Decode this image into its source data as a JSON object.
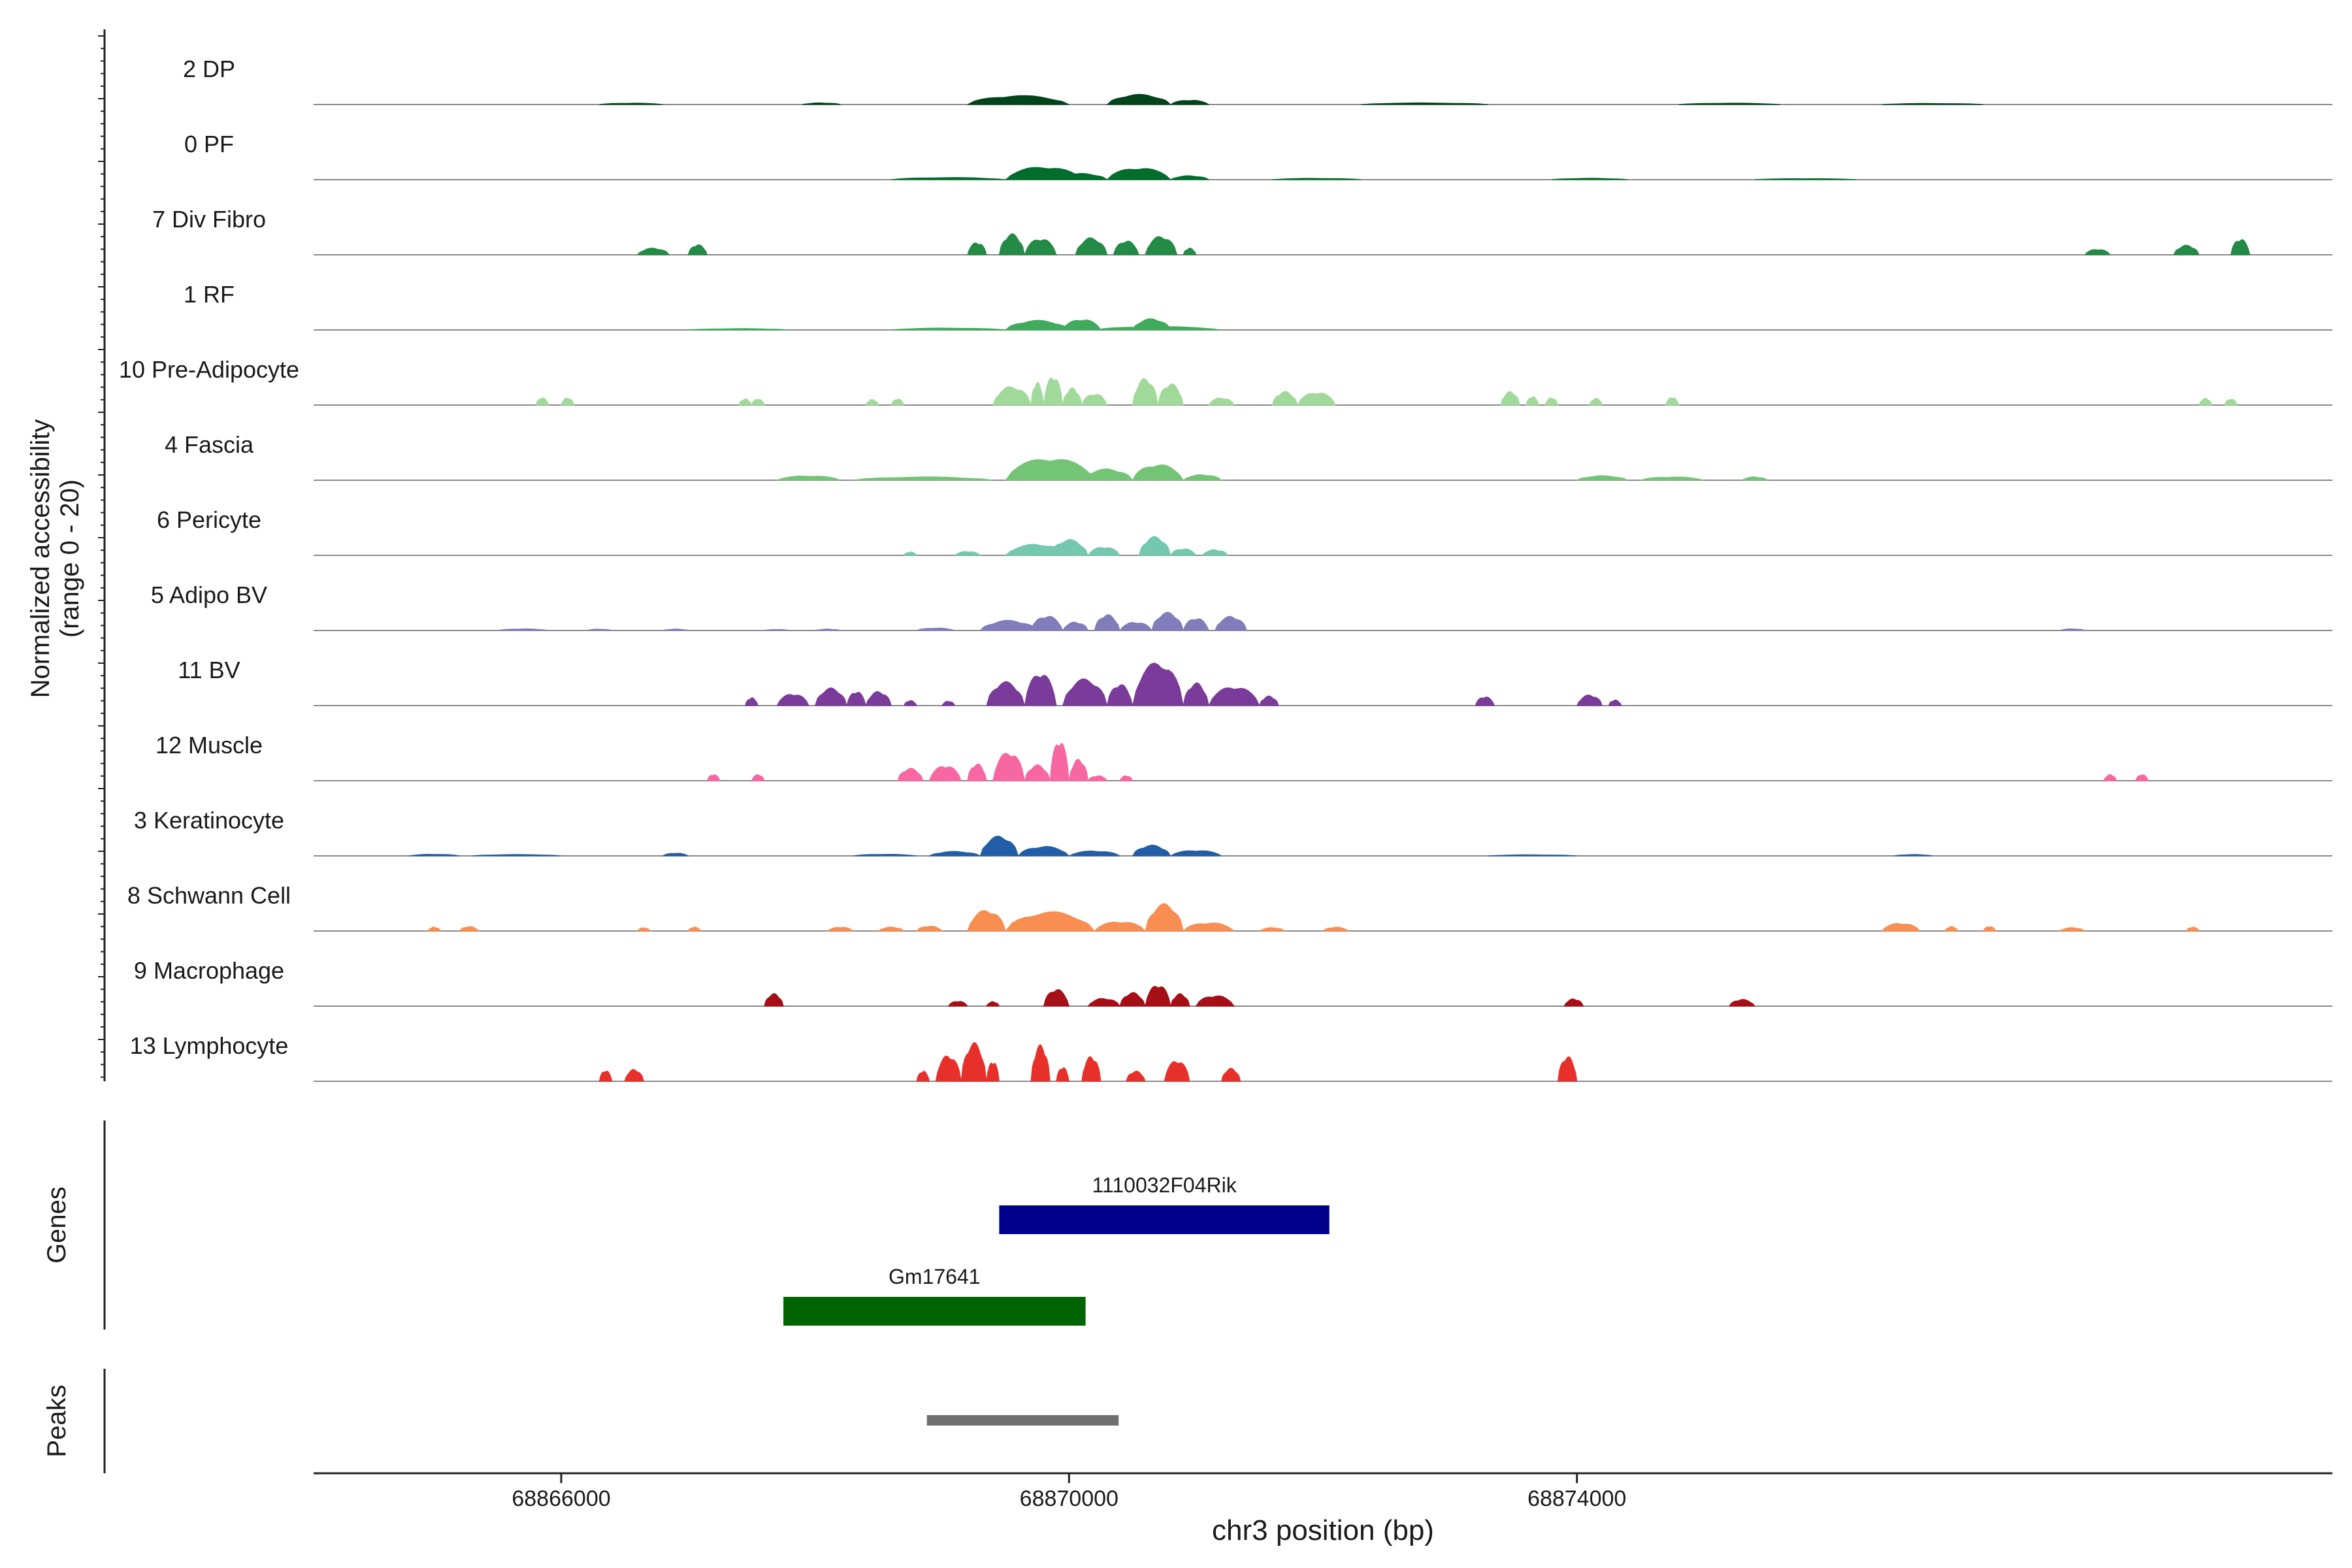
{
  "chart_data": {
    "type": "area",
    "title": "",
    "ylabel_line1": "Normalized accessibility",
    "ylabel_line2": "(range 0 - 20)",
    "xlabel": "chr3 position (bp)",
    "xlim": [
      68864050,
      68879950
    ],
    "ylim": [
      0,
      20
    ],
    "x_ticks": [
      68866000,
      68870000,
      68874000
    ],
    "x_tick_labels": [
      "68866000",
      "68870000",
      "68874000"
    ],
    "tracks": [
      {
        "name": "2 DP",
        "color": "#00441b",
        "peaks": [
          [
            68866300,
            68866800,
            0.5
          ],
          [
            68867900,
            68868200,
            0.6
          ],
          [
            68869200,
            68870000,
            3.2
          ],
          [
            68869600,
            68869800,
            2.6
          ],
          [
            68870300,
            68870800,
            3.6
          ],
          [
            68870800,
            68871100,
            1.6
          ],
          [
            68872300,
            68873300,
            0.6
          ],
          [
            68874800,
            68875600,
            0.5
          ],
          [
            68876400,
            68877200,
            0.4
          ]
        ]
      },
      {
        "name": "0 PF",
        "color": "#006d2c",
        "peaks": [
          [
            68869500,
            68870100,
            4.6
          ],
          [
            68869900,
            68870300,
            2.2
          ],
          [
            68870300,
            68870800,
            4.2
          ],
          [
            68870800,
            68871100,
            1.4
          ],
          [
            68868600,
            68869500,
            0.8
          ],
          [
            68871600,
            68872300,
            0.5
          ],
          [
            68873800,
            68874400,
            0.5
          ],
          [
            68875400,
            68876200,
            0.4
          ]
        ]
      },
      {
        "name": "7 Div Fibro",
        "color": "#238b45",
        "peaks": [
          [
            68866600,
            68866850,
            2.4
          ],
          [
            68867000,
            68867150,
            3.6
          ],
          [
            68869200,
            68869350,
            4.4
          ],
          [
            68869450,
            68869650,
            7.4
          ],
          [
            68869650,
            68869900,
            5.8
          ],
          [
            68870050,
            68870300,
            6.0
          ],
          [
            68870350,
            68870550,
            5.0
          ],
          [
            68870600,
            68870850,
            6.6
          ],
          [
            68870900,
            68871000,
            2.4
          ],
          [
            68878000,
            68878200,
            2.0
          ],
          [
            68878700,
            68878900,
            3.4
          ],
          [
            68879150,
            68879300,
            5.6
          ]
        ]
      },
      {
        "name": "1 RF",
        "color": "#41ab5d",
        "peaks": [
          [
            68869500,
            68870000,
            3.4
          ],
          [
            68869950,
            68870250,
            3.8
          ],
          [
            68870500,
            68870800,
            4.0
          ],
          [
            68870200,
            68871200,
            1.2
          ],
          [
            68868600,
            68869500,
            0.7
          ],
          [
            68867000,
            68867800,
            0.5
          ]
        ]
      },
      {
        "name": "10 Pre-Adipocyte",
        "color": "#a1d99b",
        "peaks": [
          [
            68865800,
            68865900,
            2.6
          ],
          [
            68866000,
            68866100,
            2.6
          ],
          [
            68867400,
            68867500,
            2.2
          ],
          [
            68867500,
            68867600,
            2.2
          ],
          [
            68868400,
            68868500,
            2.0
          ],
          [
            68868600,
            68868700,
            2.2
          ],
          [
            68869400,
            68869700,
            6.6
          ],
          [
            68869700,
            68869800,
            8.0
          ],
          [
            68869800,
            68869950,
            10.2
          ],
          [
            68869950,
            68870100,
            6.0
          ],
          [
            68870100,
            68870300,
            4.0
          ],
          [
            68870500,
            68870700,
            9.4
          ],
          [
            68870700,
            68870900,
            7.6
          ],
          [
            68871100,
            68871300,
            2.6
          ],
          [
            68871600,
            68871800,
            4.8
          ],
          [
            68871800,
            68872100,
            4.6
          ],
          [
            68873400,
            68873550,
            4.8
          ],
          [
            68873600,
            68873700,
            3.0
          ],
          [
            68873750,
            68873850,
            2.6
          ],
          [
            68874100,
            68874200,
            2.4
          ],
          [
            68874700,
            68874800,
            2.8
          ],
          [
            68878900,
            68879000,
            2.4
          ],
          [
            68879100,
            68879200,
            2.2
          ]
        ]
      },
      {
        "name": "4 Fascia",
        "color": "#74c476",
        "peaks": [
          [
            68869500,
            68870200,
            8.0
          ],
          [
            68870100,
            68870500,
            4.0
          ],
          [
            68870500,
            68870900,
            5.6
          ],
          [
            68870900,
            68871200,
            2.0
          ],
          [
            68868300,
            68869400,
            1.2
          ],
          [
            68867700,
            68868200,
            1.6
          ],
          [
            68874000,
            68874400,
            1.6
          ],
          [
            68874500,
            68875000,
            1.2
          ],
          [
            68875300,
            68875500,
            1.2
          ]
        ]
      },
      {
        "name": "6 Pericyte",
        "color": "#74c8b0",
        "peaks": [
          [
            68869500,
            68870000,
            4.0
          ],
          [
            68869850,
            68870150,
            5.6
          ],
          [
            68870150,
            68870400,
            3.0
          ],
          [
            68870550,
            68870800,
            6.6
          ],
          [
            68870800,
            68871000,
            2.4
          ],
          [
            68871050,
            68871250,
            2.0
          ],
          [
            68868700,
            68868800,
            1.2
          ],
          [
            68869100,
            68869300,
            1.4
          ]
        ]
      },
      {
        "name": "5 Adipo BV",
        "color": "#807dba",
        "peaks": [
          [
            68869300,
            68869750,
            3.6
          ],
          [
            68869700,
            68869950,
            5.2
          ],
          [
            68869950,
            68870150,
            3.0
          ],
          [
            68870200,
            68870400,
            5.6
          ],
          [
            68870400,
            68870650,
            3.0
          ],
          [
            68870650,
            68870900,
            6.4
          ],
          [
            68870900,
            68871100,
            4.4
          ],
          [
            68871150,
            68871400,
            5.0
          ],
          [
            68865500,
            68865900,
            0.6
          ],
          [
            68866200,
            68866400,
            0.5
          ],
          [
            68866800,
            68867000,
            0.5
          ],
          [
            68867600,
            68867800,
            0.4
          ],
          [
            68868000,
            68868200,
            0.5
          ],
          [
            68868800,
            68869100,
            0.9
          ],
          [
            68877800,
            68878000,
            0.6
          ]
        ]
      },
      {
        "name": "11 BV",
        "color": "#7a3b9a",
        "peaks": [
          [
            68867450,
            68867550,
            2.8
          ],
          [
            68867700,
            68867950,
            4.2
          ],
          [
            68868000,
            68868250,
            6.2
          ],
          [
            68868250,
            68868400,
            5.0
          ],
          [
            68868400,
            68868600,
            5.0
          ],
          [
            68868700,
            68868800,
            1.8
          ],
          [
            68869000,
            68869100,
            1.6
          ],
          [
            68869350,
            68869650,
            8.4
          ],
          [
            68869650,
            68869900,
            11.6
          ],
          [
            68869950,
            68870300,
            9.4
          ],
          [
            68870300,
            68870500,
            7.6
          ],
          [
            68870500,
            68870900,
            15.4
          ],
          [
            68870900,
            68871100,
            8.0
          ],
          [
            68871100,
            68871500,
            6.8
          ],
          [
            68871500,
            68871650,
            3.4
          ],
          [
            68873200,
            68873350,
            3.2
          ],
          [
            68874000,
            68874200,
            3.8
          ],
          [
            68874250,
            68874350,
            2.0
          ]
        ]
      },
      {
        "name": "12 Muscle",
        "color": "#f767a1",
        "peaks": [
          [
            68867150,
            68867250,
            2.2
          ],
          [
            68867500,
            68867600,
            2.2
          ],
          [
            68869200,
            68869350,
            6.0
          ],
          [
            68869400,
            68869650,
            10.2
          ],
          [
            68869650,
            68869850,
            5.6
          ],
          [
            68869850,
            68870000,
            14.2
          ],
          [
            68870000,
            68870150,
            7.6
          ],
          [
            68870150,
            68870300,
            1.8
          ],
          [
            68870400,
            68870500,
            1.8
          ],
          [
            68868650,
            68868850,
            4.4
          ],
          [
            68868900,
            68869150,
            5.4
          ],
          [
            68878150,
            68878250,
            2.2
          ],
          [
            68878400,
            68878500,
            2.2
          ]
        ]
      },
      {
        "name": "3 Keratinocyte",
        "color": "#225ea8",
        "peaks": [
          [
            68864800,
            68865200,
            0.6
          ],
          [
            68865300,
            68866000,
            0.5
          ],
          [
            68866800,
            68867000,
            1.0
          ],
          [
            68869300,
            68869600,
            7.0
          ],
          [
            68869600,
            68870000,
            3.4
          ],
          [
            68870000,
            68870400,
            1.8
          ],
          [
            68870500,
            68870800,
            3.8
          ],
          [
            68870800,
            68871200,
            2.0
          ],
          [
            68868900,
            68869300,
            1.6
          ],
          [
            68868300,
            68868800,
            0.6
          ],
          [
            68873300,
            68874000,
            0.4
          ],
          [
            68876500,
            68876800,
            0.5
          ]
        ]
      },
      {
        "name": "8 Schwann Cell",
        "color": "#f98e52",
        "peaks": [
          [
            68864950,
            68865050,
            1.4
          ],
          [
            68865200,
            68865350,
            1.6
          ],
          [
            68866600,
            68866700,
            1.2
          ],
          [
            68867000,
            68867100,
            1.4
          ],
          [
            68868100,
            68868300,
            1.4
          ],
          [
            68868500,
            68868700,
            1.4
          ],
          [
            68868800,
            68869000,
            1.8
          ],
          [
            68869200,
            68869500,
            7.4
          ],
          [
            68869500,
            68870200,
            6.8
          ],
          [
            68870200,
            68870600,
            3.4
          ],
          [
            68870600,
            68870900,
            9.6
          ],
          [
            68870900,
            68871300,
            3.0
          ],
          [
            68871500,
            68871700,
            1.2
          ],
          [
            68872000,
            68872200,
            1.4
          ],
          [
            68876400,
            68876700,
            2.8
          ],
          [
            68876900,
            68877000,
            1.6
          ],
          [
            68877200,
            68877300,
            1.6
          ],
          [
            68877800,
            68878000,
            1.2
          ],
          [
            68878800,
            68878900,
            1.4
          ]
        ]
      },
      {
        "name": "9 Macrophage",
        "color": "#a50f15",
        "peaks": [
          [
            68867600,
            68867750,
            4.4
          ],
          [
            68869050,
            68869200,
            1.8
          ],
          [
            68869350,
            68869450,
            1.6
          ],
          [
            68869800,
            68870000,
            6.0
          ],
          [
            68870150,
            68870400,
            2.8
          ],
          [
            68870400,
            68870600,
            4.8
          ],
          [
            68870600,
            68870800,
            7.6
          ],
          [
            68870800,
            68870950,
            4.4
          ],
          [
            68871000,
            68871300,
            3.8
          ],
          [
            68873900,
            68874050,
            2.6
          ],
          [
            68875200,
            68875400,
            2.4
          ]
        ]
      },
      {
        "name": "13 Lymphocyte",
        "color": "#e8302a",
        "peaks": [
          [
            68868800,
            68868900,
            3.6
          ],
          [
            68868950,
            68869150,
            9.2
          ],
          [
            68869150,
            68869350,
            13.6
          ],
          [
            68869350,
            68869450,
            7.0
          ],
          [
            68869700,
            68869850,
            12.8
          ],
          [
            68869900,
            68870000,
            5.0
          ],
          [
            68870100,
            68870250,
            8.8
          ],
          [
            68870450,
            68870600,
            3.6
          ],
          [
            68870750,
            68870950,
            7.4
          ],
          [
            68871200,
            68871350,
            4.6
          ],
          [
            68866300,
            68866400,
            3.8
          ],
          [
            68866500,
            68866650,
            4.2
          ],
          [
            68873850,
            68874000,
            8.8
          ]
        ]
      }
    ],
    "genes_label": "Genes",
    "genes": [
      {
        "name": "1110032F04Rik",
        "start": 68869450,
        "end": 68872050,
        "color": "#00008b"
      },
      {
        "name": "Gm17641",
        "start": 68867750,
        "end": 68870130,
        "color": "#006400"
      }
    ],
    "peaks_label": "Peaks",
    "peak_regions": [
      {
        "start": 68868880,
        "end": 68870390,
        "color": "#707070"
      }
    ]
  }
}
